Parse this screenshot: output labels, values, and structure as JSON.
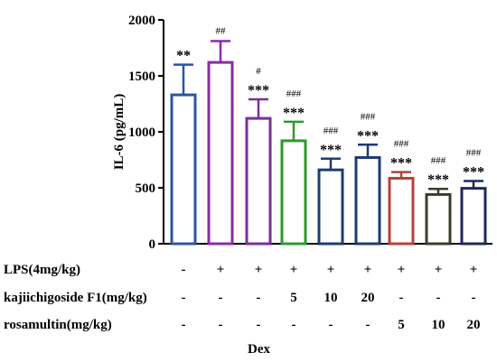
{
  "chart_data": {
    "type": "bar",
    "title": "",
    "xlabel": "",
    "ylabel": "IL-6 (pg/mL)",
    "ylim": [
      0,
      2000
    ],
    "yticks": [
      "0",
      "500",
      "1000",
      "1500",
      "2000"
    ],
    "grid": false,
    "values": [
      1330,
      1620,
      1120,
      920,
      660,
      770,
      585,
      440,
      495
    ],
    "errors": [
      270,
      190,
      170,
      170,
      100,
      115,
      55,
      50,
      65
    ],
    "colors": [
      "#2c54a1",
      "#8a2ba8",
      "#7a2f9b",
      "#2c9a2c",
      "#1f3b73",
      "#1f3b73",
      "#b5413a",
      "#3a3f2c",
      "#1f2a5a"
    ],
    "stars": [
      "**",
      "",
      "***",
      "***",
      "***",
      "***",
      "***",
      "***",
      "***"
    ],
    "hashes": [
      "",
      "##",
      "#",
      "###",
      "###",
      "###",
      "###",
      "###",
      "###"
    ]
  },
  "treatment_table": {
    "rows": [
      {
        "label": "LPS(4mg/kg)",
        "cells": [
          "-",
          "+",
          "+",
          "+",
          "+",
          "+",
          "+",
          "+",
          "+"
        ]
      },
      {
        "label": "kajiichigoside F1(mg/kg)",
        "cells": [
          "-",
          "-",
          "-",
          "5",
          "10",
          "20",
          "-",
          "-",
          "-"
        ]
      },
      {
        "label": "rosamultin(mg/kg)",
        "cells": [
          "-",
          "-",
          "-",
          "-",
          "-",
          "-",
          "5",
          "10",
          "20"
        ]
      }
    ],
    "dex_label": "Dex"
  }
}
